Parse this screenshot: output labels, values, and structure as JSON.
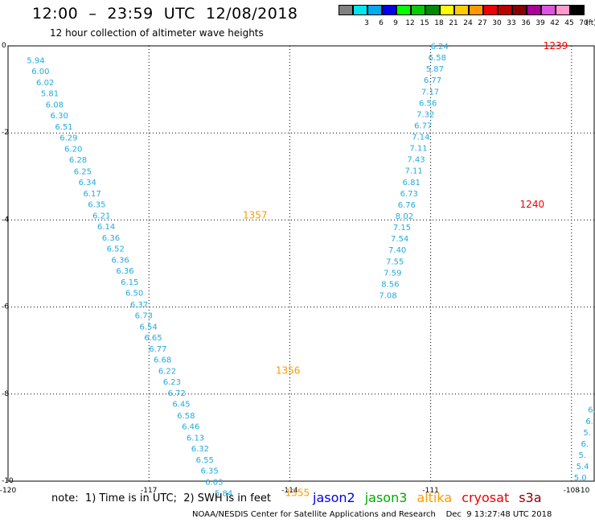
{
  "header": {
    "title": "12:00  –  23:59  UTC  12/08/2018",
    "subtitle": "12 hour collection of altimeter wave heights"
  },
  "legend": {
    "unit": "(ft)",
    "bins": [
      {
        "color": "#808080",
        "label": ""
      },
      {
        "color": "#00e5ee",
        "label": "3"
      },
      {
        "color": "#00aaee",
        "label": "6"
      },
      {
        "color": "#0000ee",
        "label": "9"
      },
      {
        "color": "#00ff00",
        "label": "12"
      },
      {
        "color": "#00cc00",
        "label": "15"
      },
      {
        "color": "#008800",
        "label": "18"
      },
      {
        "color": "#ffff00",
        "label": "21"
      },
      {
        "color": "#ffcc00",
        "label": "24"
      },
      {
        "color": "#ff9900",
        "label": "27"
      },
      {
        "color": "#ee0000",
        "label": "30"
      },
      {
        "color": "#bb0000",
        "label": "33"
      },
      {
        "color": "#880000",
        "label": "36"
      },
      {
        "color": "#aa0099",
        "label": "39"
      },
      {
        "color": "#dd55dd",
        "label": "42"
      },
      {
        "color": "#ff99cc",
        "label": "45"
      },
      {
        "color": "#000000",
        "label": "70"
      }
    ]
  },
  "map": {
    "x_range": [
      -120,
      -107.5
    ],
    "y_range": [
      -10,
      0
    ],
    "x_ticks": [
      "-120",
      "-117",
      "-114",
      "-111",
      "-108",
      "-10"
    ],
    "y_ticks": [
      "0",
      "-2",
      "-4",
      "-6",
      "-8",
      "-10"
    ],
    "grid": true,
    "tracks": [
      {
        "satellite": "altika",
        "value_color": "#22aadd",
        "time_color": "#ff9900",
        "points": [
          {
            "lon": -119.6,
            "lat": -0.32,
            "v": "5.94"
          },
          {
            "lon": -119.5,
            "lat": -0.57,
            "v": "6.00"
          },
          {
            "lon": -119.4,
            "lat": -0.83,
            "v": "6.02"
          },
          {
            "lon": -119.3,
            "lat": -1.08,
            "v": "5.81"
          },
          {
            "lon": -119.2,
            "lat": -1.34,
            "v": "6.08"
          },
          {
            "lon": -119.1,
            "lat": -1.59,
            "v": "6.30"
          },
          {
            "lon": -119.0,
            "lat": -1.85,
            "v": "6.51"
          },
          {
            "lon": -118.9,
            "lat": -2.1,
            "v": "6.29"
          },
          {
            "lon": -118.8,
            "lat": -2.36,
            "v": "6.20"
          },
          {
            "lon": -118.7,
            "lat": -2.61,
            "v": "6.28"
          },
          {
            "lon": -118.6,
            "lat": -2.87,
            "v": "6.25"
          },
          {
            "lon": -118.5,
            "lat": -3.12,
            "v": "6.34"
          },
          {
            "lon": -118.4,
            "lat": -3.38,
            "v": "6.17"
          },
          {
            "lon": -118.3,
            "lat": -3.63,
            "v": "6.35"
          },
          {
            "lon": -118.2,
            "lat": -3.89,
            "v": "6.21"
          },
          {
            "lon": -118.1,
            "lat": -4.14,
            "v": "6.14"
          },
          {
            "lon": -118.0,
            "lat": -4.4,
            "v": "6.36"
          },
          {
            "lon": -117.9,
            "lat": -4.65,
            "v": "6.52"
          },
          {
            "lon": -117.8,
            "lat": -4.91,
            "v": "6.36"
          },
          {
            "lon": -117.7,
            "lat": -5.16,
            "v": "6.36"
          },
          {
            "lon": -117.6,
            "lat": -5.42,
            "v": "6.15"
          },
          {
            "lon": -117.5,
            "lat": -5.67,
            "v": "6.50"
          },
          {
            "lon": -117.4,
            "lat": -5.93,
            "v": "6.37"
          },
          {
            "lon": -117.3,
            "lat": -6.18,
            "v": "6.73"
          },
          {
            "lon": -117.2,
            "lat": -6.44,
            "v": "6.54"
          },
          {
            "lon": -117.1,
            "lat": -6.69,
            "v": "6.65"
          },
          {
            "lon": -117.0,
            "lat": -6.95,
            "v": "6.77"
          },
          {
            "lon": -116.9,
            "lat": -7.2,
            "v": "6.68"
          },
          {
            "lon": -116.8,
            "lat": -7.46,
            "v": "6.22"
          },
          {
            "lon": -116.7,
            "lat": -7.71,
            "v": "6.23"
          },
          {
            "lon": -116.6,
            "lat": -7.97,
            "v": "6.72"
          },
          {
            "lon": -116.5,
            "lat": -8.22,
            "v": "6.45"
          },
          {
            "lon": -116.4,
            "lat": -8.48,
            "v": "6.58"
          },
          {
            "lon": -116.3,
            "lat": -8.73,
            "v": "6.46"
          },
          {
            "lon": -116.2,
            "lat": -8.99,
            "v": "6.13"
          },
          {
            "lon": -116.1,
            "lat": -9.24,
            "v": "6.32"
          },
          {
            "lon": -116.0,
            "lat": -9.5,
            "v": "6.55"
          },
          {
            "lon": -115.9,
            "lat": -9.75,
            "v": "6.35"
          },
          {
            "lon": -115.8,
            "lat": -10.01,
            "v": "6.03"
          },
          {
            "lon": -115.6,
            "lat": -10.27,
            "v": "5.84"
          }
        ],
        "times": [
          {
            "lon": -115.0,
            "lat": -3.89,
            "t": "1357"
          },
          {
            "lon": -114.3,
            "lat": -7.46,
            "t": "1356"
          },
          {
            "lon": -114.1,
            "lat": -10.27,
            "t": "1355"
          }
        ]
      },
      {
        "satellite": "cryosat",
        "value_color": "#22aadd",
        "time_color": "#ee0000",
        "points": [
          {
            "lon": -111.0,
            "lat": 0.0,
            "v": "6.24"
          },
          {
            "lon": -111.05,
            "lat": -0.26,
            "v": "6.58"
          },
          {
            "lon": -111.1,
            "lat": -0.52,
            "v": "5.87"
          },
          {
            "lon": -111.15,
            "lat": -0.78,
            "v": "6.77"
          },
          {
            "lon": -111.2,
            "lat": -1.04,
            "v": "7.17"
          },
          {
            "lon": -111.25,
            "lat": -1.3,
            "v": "6.56"
          },
          {
            "lon": -111.3,
            "lat": -1.56,
            "v": "7.32"
          },
          {
            "lon": -111.35,
            "lat": -1.82,
            "v": "6.77"
          },
          {
            "lon": -111.4,
            "lat": -2.08,
            "v": "7.14"
          },
          {
            "lon": -111.45,
            "lat": -2.34,
            "v": "7.11"
          },
          {
            "lon": -111.5,
            "lat": -2.6,
            "v": "7.43"
          },
          {
            "lon": -111.55,
            "lat": -2.86,
            "v": "7.11"
          },
          {
            "lon": -111.6,
            "lat": -3.12,
            "v": "6.81"
          },
          {
            "lon": -111.65,
            "lat": -3.38,
            "v": "6.73"
          },
          {
            "lon": -111.7,
            "lat": -3.64,
            "v": "6.76"
          },
          {
            "lon": -111.75,
            "lat": -3.9,
            "v": "8.02"
          },
          {
            "lon": -111.8,
            "lat": -4.16,
            "v": "7.15"
          },
          {
            "lon": -111.85,
            "lat": -4.42,
            "v": "7.54"
          },
          {
            "lon": -111.9,
            "lat": -4.68,
            "v": "7.40"
          },
          {
            "lon": -111.95,
            "lat": -4.94,
            "v": "7.55"
          },
          {
            "lon": -112.0,
            "lat": -5.2,
            "v": "7.59"
          },
          {
            "lon": -112.05,
            "lat": -5.46,
            "v": "8.56"
          },
          {
            "lon": -112.1,
            "lat": -5.72,
            "v": "7.08"
          }
        ],
        "times": [
          {
            "lon": -108.6,
            "lat": 0.0,
            "t": "1239"
          },
          {
            "lon": -109.1,
            "lat": -3.64,
            "t": "1240"
          }
        ]
      },
      {
        "satellite": "partial",
        "value_color": "#22aadd",
        "time_color": "#22aadd",
        "points": [
          {
            "lon": -107.65,
            "lat": -8.35,
            "v": "6."
          },
          {
            "lon": -107.7,
            "lat": -8.61,
            "v": "6."
          },
          {
            "lon": -107.75,
            "lat": -8.87,
            "v": "5."
          },
          {
            "lon": -107.8,
            "lat": -9.13,
            "v": "6."
          },
          {
            "lon": -107.85,
            "lat": -9.39,
            "v": "5."
          },
          {
            "lon": -107.9,
            "lat": -9.65,
            "v": "5.4"
          },
          {
            "lon": -107.95,
            "lat": -9.91,
            "v": "5.0"
          }
        ],
        "times": []
      }
    ]
  },
  "note": "note:  1) Time is in UTC;  2) SWH is in feet",
  "satellites": [
    {
      "name": "jason2",
      "color": "#0000ee"
    },
    {
      "name": "jason3",
      "color": "#00aa00"
    },
    {
      "name": "altika",
      "color": "#ff9900"
    },
    {
      "name": "cryosat",
      "color": "#ee0000"
    },
    {
      "name": "s3a",
      "color": "#880000"
    }
  ],
  "footer": "NOAA/NESDIS Center for Satellite Applications and Research    Dec  9 13:27:48 UTC 2018"
}
